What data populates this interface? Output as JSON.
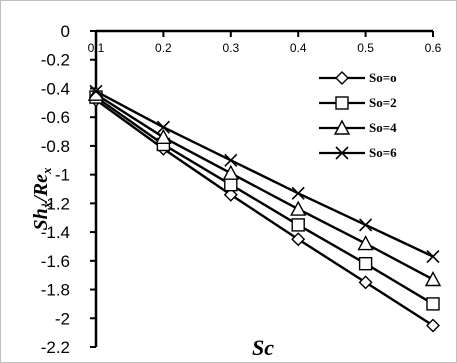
{
  "chart_data": {
    "type": "line",
    "title": "",
    "xlabel": "Sc",
    "ylabel_main": "Sh",
    "ylabel_sub": "x",
    "ylabel_sep": "/Re",
    "ylabel_sub2": "x",
    "x": [
      0.1,
      0.2,
      0.3,
      0.4,
      0.5,
      0.6
    ],
    "x_ticks": [
      "0.1",
      "0.2",
      "0.3",
      "0.4",
      "0.5",
      "0.6"
    ],
    "y_ticks": [
      "0",
      "-0.2",
      "-0.4",
      "-0.6",
      "-0.8",
      "-1",
      "-1.2",
      "-1.4",
      "-1.6",
      "-1.8",
      "-2",
      "-2.2"
    ],
    "xlim": [
      0.1,
      0.6
    ],
    "ylim": [
      -2.2,
      0
    ],
    "grid": false,
    "legend_position": "top-right",
    "series": [
      {
        "name": "So=o",
        "marker": "diamond",
        "values": [
          -0.48,
          -0.82,
          -1.14,
          -1.45,
          -1.75,
          -2.05
        ]
      },
      {
        "name": "So=2",
        "marker": "square",
        "values": [
          -0.46,
          -0.79,
          -1.07,
          -1.35,
          -1.62,
          -1.9
        ]
      },
      {
        "name": "So=4",
        "marker": "triangle",
        "values": [
          -0.44,
          -0.74,
          -0.99,
          -1.24,
          -1.48,
          -1.73
        ]
      },
      {
        "name": "So=6",
        "marker": "cross",
        "values": [
          -0.42,
          -0.67,
          -0.9,
          -1.13,
          -1.35,
          -1.57
        ]
      }
    ]
  }
}
